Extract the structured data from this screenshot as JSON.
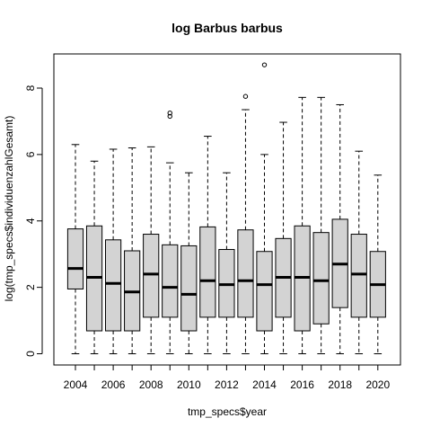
{
  "chart_data": {
    "type": "boxplot",
    "title": "log Barbus barbus",
    "xlabel": "tmp_specs$year",
    "ylabel": "log(tmp_specs$individuenzahlGesamt)",
    "x_tick_labels": [
      "2004",
      "2006",
      "2008",
      "2010",
      "2012",
      "2014",
      "2016",
      "2018",
      "2020"
    ],
    "y_ticks": [
      0,
      2,
      4,
      6,
      8
    ],
    "ylim": [
      -0.2,
      8.9
    ],
    "box_fill": "#d3d3d3",
    "categories": [
      "2004",
      "2005",
      "2006",
      "2007",
      "2008",
      "2009",
      "2010",
      "2011",
      "2012",
      "2013",
      "2014",
      "2015",
      "2016",
      "2017",
      "2018",
      "2019",
      "2020"
    ],
    "boxes": [
      {
        "year": "2004",
        "min": 0,
        "q1": 1.95,
        "median": 2.57,
        "q3": 3.76,
        "max": 6.3,
        "outliers": []
      },
      {
        "year": "2005",
        "min": 0,
        "q1": 0.69,
        "median": 2.3,
        "q3": 3.85,
        "max": 5.8,
        "outliers": []
      },
      {
        "year": "2006",
        "min": 0,
        "q1": 0.69,
        "median": 2.12,
        "q3": 3.43,
        "max": 6.16,
        "outliers": []
      },
      {
        "year": "2007",
        "min": 0,
        "q1": 0.69,
        "median": 1.86,
        "q3": 3.1,
        "max": 6.2,
        "outliers": []
      },
      {
        "year": "2008",
        "min": 0,
        "q1": 1.1,
        "median": 2.4,
        "q3": 3.6,
        "max": 6.23,
        "outliers": []
      },
      {
        "year": "2009",
        "min": 0,
        "q1": 1.1,
        "median": 2.0,
        "q3": 3.28,
        "max": 5.75,
        "outliers": [
          7.15,
          7.25
        ]
      },
      {
        "year": "2010",
        "min": 0,
        "q1": 0.69,
        "median": 1.79,
        "q3": 3.25,
        "max": 5.45,
        "outliers": []
      },
      {
        "year": "2011",
        "min": 0,
        "q1": 1.1,
        "median": 2.2,
        "q3": 3.82,
        "max": 6.55,
        "outliers": []
      },
      {
        "year": "2012",
        "min": 0,
        "q1": 1.1,
        "median": 2.08,
        "q3": 3.14,
        "max": 5.45,
        "outliers": []
      },
      {
        "year": "2013",
        "min": 0,
        "q1": 1.1,
        "median": 2.2,
        "q3": 3.73,
        "max": 7.35,
        "outliers": [
          7.75
        ]
      },
      {
        "year": "2014",
        "min": 0,
        "q1": 0.69,
        "median": 2.08,
        "q3": 3.08,
        "max": 6.0,
        "outliers": [
          8.7
        ]
      },
      {
        "year": "2015",
        "min": 0,
        "q1": 1.1,
        "median": 2.3,
        "q3": 3.47,
        "max": 6.97,
        "outliers": []
      },
      {
        "year": "2016",
        "min": 0,
        "q1": 0.69,
        "median": 2.3,
        "q3": 3.85,
        "max": 7.72,
        "outliers": []
      },
      {
        "year": "2017",
        "min": 0,
        "q1": 0.9,
        "median": 2.2,
        "q3": 3.65,
        "max": 7.72,
        "outliers": []
      },
      {
        "year": "2018",
        "min": 0,
        "q1": 1.39,
        "median": 2.7,
        "q3": 4.05,
        "max": 7.5,
        "outliers": []
      },
      {
        "year": "2019",
        "min": 0,
        "q1": 1.1,
        "median": 2.4,
        "q3": 3.6,
        "max": 6.1,
        "outliers": []
      },
      {
        "year": "2020",
        "min": 0,
        "q1": 1.1,
        "median": 2.08,
        "q3": 3.08,
        "max": 5.38,
        "outliers": []
      }
    ]
  }
}
